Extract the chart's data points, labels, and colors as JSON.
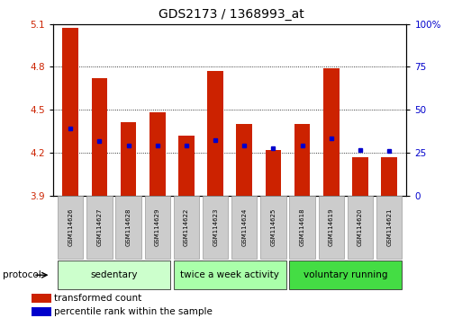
{
  "title": "GDS2173 / 1368993_at",
  "samples": [
    "GSM114626",
    "GSM114627",
    "GSM114628",
    "GSM114629",
    "GSM114622",
    "GSM114623",
    "GSM114624",
    "GSM114625",
    "GSM114618",
    "GSM114619",
    "GSM114620",
    "GSM114621"
  ],
  "bar_tops": [
    5.07,
    4.72,
    4.41,
    4.48,
    4.32,
    4.77,
    4.4,
    4.22,
    4.4,
    4.79,
    4.17,
    4.17
  ],
  "bar_base": 3.9,
  "blue_values": [
    4.37,
    4.28,
    4.25,
    4.25,
    4.25,
    4.29,
    4.25,
    4.23,
    4.25,
    4.3,
    4.22,
    4.21
  ],
  "ylim": [
    3.9,
    5.1
  ],
  "yticks_left": [
    3.9,
    4.2,
    4.5,
    4.8,
    5.1
  ],
  "yticks_right": [
    0,
    25,
    50,
    75,
    100
  ],
  "bar_color": "#cc2200",
  "blue_color": "#0000cc",
  "groups": [
    {
      "label": "sedentary",
      "indices": [
        0,
        1,
        2,
        3
      ],
      "color": "#ccffcc"
    },
    {
      "label": "twice a week activity",
      "indices": [
        4,
        5,
        6,
        7
      ],
      "color": "#aaffaa"
    },
    {
      "label": "voluntary running",
      "indices": [
        8,
        9,
        10,
        11
      ],
      "color": "#44dd44"
    }
  ],
  "protocol_label": "protocol",
  "legend_bar_label": "transformed count",
  "legend_dot_label": "percentile rank within the sample",
  "grid_yticks": [
    4.2,
    4.5,
    4.8
  ],
  "tick_label_color_left": "#cc2200",
  "tick_label_color_right": "#0000cc",
  "label_box_color": "#cccccc",
  "label_box_edge": "#999999"
}
